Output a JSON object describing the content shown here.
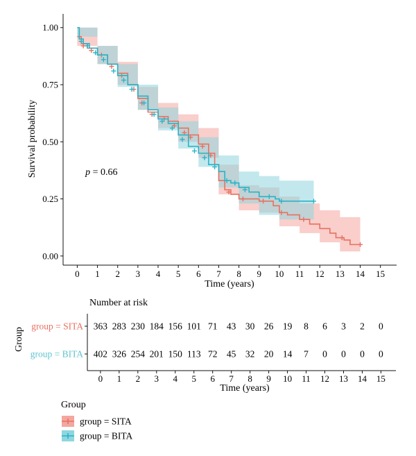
{
  "chart_data": [
    {
      "type": "line",
      "subtype": "kaplan-meier",
      "ylabel": "Survival probability",
      "xlabel": "Time (years)",
      "xlim": [
        -0.7,
        15.8
      ],
      "ylim": [
        -0.04,
        1.06
      ],
      "x_ticks": [
        0,
        1,
        2,
        3,
        4,
        5,
        6,
        7,
        8,
        9,
        10,
        11,
        12,
        13,
        14,
        15
      ],
      "y_ticks": [
        0.0,
        0.25,
        0.5,
        0.75,
        1.0
      ],
      "y_tick_labels": [
        "0.00",
        "0.25",
        "0.50",
        "0.75",
        "1.00"
      ],
      "annotation": {
        "prefix": "p",
        "text": " = 0.66",
        "x": 0.4,
        "y": 0.355
      },
      "legend": {
        "title": "Group",
        "placement": "bottom-left"
      },
      "series": [
        {
          "name": "group = SITA",
          "color": "#e8705f",
          "fill": "#f4a6a0",
          "steps": [
            [
              0,
              0.96
            ],
            [
              0.2,
              0.93
            ],
            [
              0.5,
              0.91
            ],
            [
              1,
              0.88
            ],
            [
              1.5,
              0.84
            ],
            [
              2,
              0.8
            ],
            [
              2.5,
              0.75
            ],
            [
              3,
              0.69
            ],
            [
              3.5,
              0.63
            ],
            [
              4,
              0.61
            ],
            [
              4.5,
              0.59
            ],
            [
              5,
              0.56
            ],
            [
              5.5,
              0.53
            ],
            [
              6,
              0.49
            ],
            [
              6.5,
              0.45
            ],
            [
              6.8,
              0.4
            ],
            [
              7,
              0.33
            ],
            [
              7.3,
              0.29
            ],
            [
              7.6,
              0.27
            ],
            [
              8,
              0.25
            ],
            [
              9,
              0.24
            ],
            [
              9.7,
              0.22
            ],
            [
              10,
              0.19
            ],
            [
              10.4,
              0.18
            ],
            [
              11,
              0.16
            ],
            [
              11.5,
              0.14
            ],
            [
              12,
              0.12
            ],
            [
              12.5,
              0.1
            ],
            [
              12.8,
              0.08
            ],
            [
              13.2,
              0.07
            ],
            [
              13.5,
              0.05
            ],
            [
              14,
              0.05
            ]
          ],
          "lower": [
            [
              0,
              0.92
            ],
            [
              1,
              0.84
            ],
            [
              2,
              0.75
            ],
            [
              3,
              0.64
            ],
            [
              4,
              0.56
            ],
            [
              5,
              0.5
            ],
            [
              6,
              0.43
            ],
            [
              7,
              0.27
            ],
            [
              8,
              0.2
            ],
            [
              9,
              0.19
            ],
            [
              10,
              0.13
            ],
            [
              11,
              0.1
            ],
            [
              12,
              0.06
            ],
            [
              13,
              0.02
            ],
            [
              14,
              0.01
            ]
          ],
          "upper": [
            [
              0,
              1
            ],
            [
              1,
              0.92
            ],
            [
              2,
              0.85
            ],
            [
              3,
              0.74
            ],
            [
              4,
              0.67
            ],
            [
              5,
              0.62
            ],
            [
              6,
              0.56
            ],
            [
              7,
              0.4
            ],
            [
              8,
              0.31
            ],
            [
              9,
              0.3
            ],
            [
              10,
              0.26
            ],
            [
              11,
              0.23
            ],
            [
              12,
              0.2
            ],
            [
              13,
              0.17
            ],
            [
              14,
              0.17
            ]
          ],
          "censor": [
            [
              0.3,
              0.92
            ],
            [
              0.7,
              0.9
            ],
            [
              1.2,
              0.88
            ],
            [
              1.7,
              0.83
            ],
            [
              2.2,
              0.79
            ],
            [
              2.8,
              0.73
            ],
            [
              3.2,
              0.67
            ],
            [
              3.7,
              0.62
            ],
            [
              4.3,
              0.6
            ],
            [
              4.8,
              0.57
            ],
            [
              5.3,
              0.54
            ],
            [
              5.6,
              0.52
            ],
            [
              6.2,
              0.48
            ],
            [
              6.6,
              0.44
            ],
            [
              7.5,
              0.28
            ],
            [
              8.2,
              0.25
            ],
            [
              9.2,
              0.24
            ],
            [
              10.1,
              0.19
            ],
            [
              11.2,
              0.16
            ],
            [
              13.1,
              0.08
            ],
            [
              14,
              0.05
            ]
          ]
        },
        {
          "name": "group = BITA",
          "color": "#27b4c8",
          "fill": "#8fd6df",
          "steps": [
            [
              0,
              1
            ],
            [
              0.1,
              0.95
            ],
            [
              0.3,
              0.93
            ],
            [
              0.6,
              0.91
            ],
            [
              1,
              0.88
            ],
            [
              1.5,
              0.84
            ],
            [
              2,
              0.79
            ],
            [
              2.5,
              0.75
            ],
            [
              3,
              0.7
            ],
            [
              3.5,
              0.64
            ],
            [
              4,
              0.6
            ],
            [
              4.5,
              0.58
            ],
            [
              5,
              0.53
            ],
            [
              5.5,
              0.48
            ],
            [
              6,
              0.45
            ],
            [
              6.5,
              0.4
            ],
            [
              7,
              0.37
            ],
            [
              7.3,
              0.33
            ],
            [
              7.6,
              0.32
            ],
            [
              8,
              0.3
            ],
            [
              8.5,
              0.28
            ],
            [
              9,
              0.26
            ],
            [
              9.8,
              0.25
            ],
            [
              10,
              0.24
            ],
            [
              11.7,
              0.24
            ]
          ],
          "lower": [
            [
              0,
              0.96
            ],
            [
              1,
              0.84
            ],
            [
              2,
              0.74
            ],
            [
              3,
              0.64
            ],
            [
              4,
              0.55
            ],
            [
              5,
              0.47
            ],
            [
              6,
              0.39
            ],
            [
              7,
              0.3
            ],
            [
              8,
              0.23
            ],
            [
              9,
              0.18
            ],
            [
              10,
              0.16
            ],
            [
              11.7,
              0.16
            ]
          ],
          "upper": [
            [
              0,
              1
            ],
            [
              1,
              0.92
            ],
            [
              2,
              0.84
            ],
            [
              3,
              0.75
            ],
            [
              4,
              0.65
            ],
            [
              5,
              0.59
            ],
            [
              6,
              0.52
            ],
            [
              7,
              0.44
            ],
            [
              8,
              0.37
            ],
            [
              9,
              0.35
            ],
            [
              10,
              0.33
            ],
            [
              11.7,
              0.33
            ]
          ],
          "censor": [
            [
              0.2,
              0.94
            ],
            [
              0.5,
              0.92
            ],
            [
              0.9,
              0.89
            ],
            [
              1.3,
              0.86
            ],
            [
              1.8,
              0.81
            ],
            [
              2.3,
              0.77
            ],
            [
              2.7,
              0.73
            ],
            [
              3.3,
              0.67
            ],
            [
              3.8,
              0.62
            ],
            [
              4.2,
              0.59
            ],
            [
              4.7,
              0.56
            ],
            [
              5.2,
              0.51
            ],
            [
              5.8,
              0.46
            ],
            [
              6.3,
              0.43
            ],
            [
              6.8,
              0.39
            ],
            [
              7.4,
              0.33
            ],
            [
              7.8,
              0.32
            ],
            [
              8.3,
              0.29
            ],
            [
              9.5,
              0.26
            ],
            [
              10.1,
              0.24
            ],
            [
              11.7,
              0.24
            ]
          ]
        }
      ]
    },
    {
      "type": "table",
      "title": "Number at risk",
      "ylabel": "Group",
      "xlabel": "Time (years)",
      "columns": [
        0,
        1,
        2,
        3,
        4,
        5,
        6,
        7,
        8,
        9,
        10,
        11,
        12,
        13,
        14,
        15
      ],
      "rows": [
        {
          "label": "group = SITA",
          "color": "#e8705f",
          "values": [
            363,
            283,
            230,
            184,
            156,
            101,
            71,
            43,
            30,
            26,
            19,
            8,
            6,
            3,
            2,
            0
          ]
        },
        {
          "label": "group = BITA",
          "color": "#5fc3d0",
          "values": [
            402,
            326,
            254,
            201,
            150,
            113,
            72,
            45,
            32,
            20,
            14,
            7,
            0,
            0,
            0,
            0
          ]
        }
      ]
    }
  ],
  "legend": {
    "title": "Group",
    "items": [
      {
        "label": "group = SITA",
        "color": "#e8705f",
        "fill": "#f4a6a0"
      },
      {
        "label": "group = BITA",
        "color": "#27b4c8",
        "fill": "#8fd6df"
      }
    ]
  }
}
